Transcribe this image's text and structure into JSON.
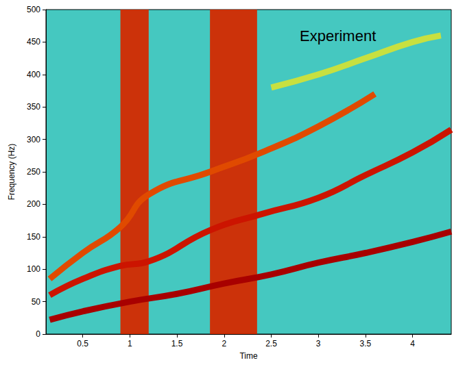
{
  "chart_data": {
    "type": "line",
    "annotation": "Experiment",
    "x_label": "Time",
    "y_label": "Frequency (Hz)",
    "xlim": [
      0.11,
      4.41
    ],
    "xticks": [
      0.5,
      1,
      1.5,
      2,
      2.5,
      3,
      3.5,
      4
    ],
    "ylim": [
      0,
      500
    ],
    "yticks": [
      0,
      50,
      100,
      150,
      200,
      250,
      300,
      350,
      400,
      450,
      500
    ],
    "grid": false,
    "series": [
      {
        "color": "#a80000",
        "x": [
          0.15,
          0.5,
          1,
          1.5,
          2,
          2.5,
          3,
          3.5,
          4,
          4.41
        ],
        "values": [
          22,
          35,
          50,
          62,
          78,
          92,
          110,
          125,
          142,
          158
        ]
      },
      {
        "color": "#cc1400",
        "x": [
          0.15,
          0.5,
          0.9,
          1.2,
          1.85,
          2.4,
          3,
          3.5,
          4,
          4.41
        ],
        "values": [
          60,
          85,
          105,
          112,
          160,
          185,
          210,
          245,
          280,
          315
        ]
      },
      {
        "color": "#e04a00",
        "x": [
          0.15,
          0.5,
          0.9,
          1.2,
          1.85,
          2.4,
          3,
          3.6
        ],
        "values": [
          85,
          125,
          165,
          215,
          250,
          280,
          320,
          370
        ]
      },
      {
        "color": "#c8e040",
        "x": [
          2.5,
          3,
          3.5,
          4,
          4.3
        ],
        "values": [
          380,
          400,
          425,
          450,
          460
        ]
      }
    ],
    "bursts": [
      [
        0.9,
        1.2
      ],
      [
        1.85,
        2.35
      ]
    ],
    "burst_color": "#d42a00"
  }
}
